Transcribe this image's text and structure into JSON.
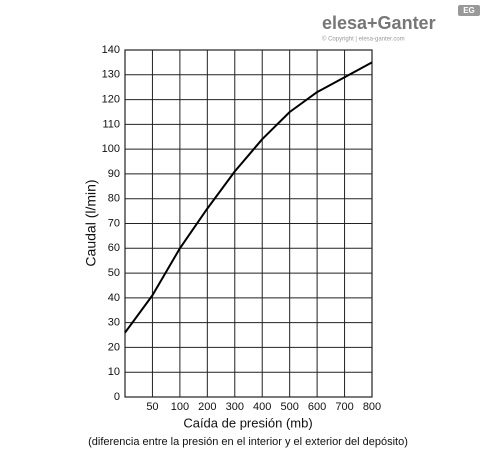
{
  "logo": {
    "brand": "elesa+Ganter",
    "copyright": "© Copyright | elesa-ganter.com",
    "badge": "EG"
  },
  "chart_data": {
    "type": "line",
    "ylabel": "Caudal (l/min)",
    "xlabel": "Caída de presión (mb)",
    "xlabel_note": "(diferencia entre la presión en el interior y el exterior del depósito)",
    "x": [
      0,
      50,
      100,
      200,
      300,
      400,
      500,
      600,
      700,
      800
    ],
    "values": [
      26,
      41,
      60,
      76,
      91,
      104,
      115,
      123,
      129,
      135
    ],
    "color": "#000000",
    "xlim": [
      0,
      800
    ],
    "xticks": [
      50,
      100,
      200,
      300,
      400,
      500,
      600,
      700,
      800
    ],
    "ylim": [
      0,
      140
    ],
    "yticks": [
      0,
      10,
      20,
      30,
      40,
      50,
      60,
      70,
      80,
      90,
      100,
      110,
      120,
      130,
      140
    ],
    "grid": true
  }
}
